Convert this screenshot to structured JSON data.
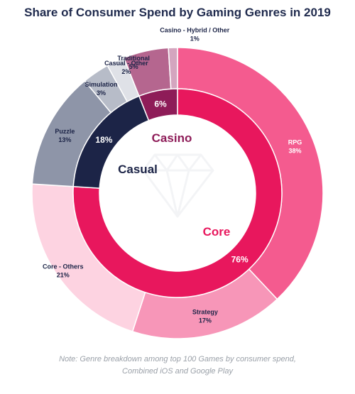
{
  "chart_data": {
    "type": "pie",
    "title": "Share of Consumer Spend by Gaming Genres in 2019",
    "inner": [
      {
        "label": "Core",
        "value": 76,
        "value_label": "76%",
        "color": "#e8175d",
        "label_color": "#e8175d"
      },
      {
        "label": "Casual",
        "value": 18,
        "value_label": "18%",
        "color": "#1c2447",
        "label_color": "#1c2447"
      },
      {
        "label": "Casino",
        "value": 6,
        "value_label": "6%",
        "color": "#8e1c58",
        "label_color": "#8e1c58"
      }
    ],
    "outer": [
      {
        "label": "RPG",
        "value": 38,
        "value_label": "38%",
        "color": "#f45b8f",
        "text_color": "#ffffff"
      },
      {
        "label": "Strategy",
        "value": 17,
        "value_label": "17%",
        "color": "#f796b8",
        "text_color": "#1c2447"
      },
      {
        "label": "Core - Others",
        "value": 21,
        "value_label": "21%",
        "color": "#fdd3e1",
        "text_color": "#1c2447"
      },
      {
        "label": "Puzzle",
        "value": 13,
        "value_label": "13%",
        "color": "#8e95a8",
        "text_color": "#1c2447"
      },
      {
        "label": "Simulation",
        "value": 3,
        "value_label": "3%",
        "color": "#b7bcc8",
        "text_color": "#1c2447"
      },
      {
        "label": "Casual - Other",
        "value": 2,
        "value_label": "2%",
        "color": "#dfe1e7",
        "text_color": "#1c2447"
      },
      {
        "label": "Traditional",
        "value": 5,
        "value_label": "5%",
        "color": "#b5668f",
        "text_color": "#1c2447"
      },
      {
        "label": "Casino - Hybrid / Other",
        "value": 1,
        "value_label": "1%",
        "color": "#d4a5bf",
        "text_color": "#1c2447"
      }
    ],
    "note": "Note: Genre breakdown among top 100 Games by consumer spend, Combined iOS and Google Play"
  }
}
